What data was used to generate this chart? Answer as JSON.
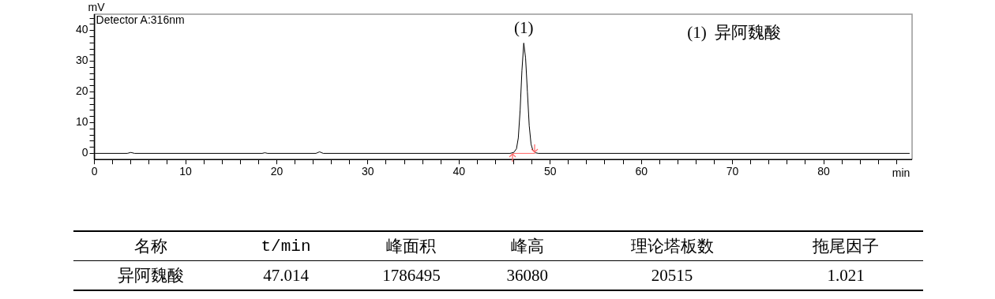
{
  "chart_data": [
    {
      "type": "line",
      "xlabel": "min",
      "ylabel": "mV",
      "annotations": [
        "Detector A:316nm",
        {
          "text": "(1)",
          "x": 47.1,
          "y": 35.9
        },
        "(1)  异阿魏酸"
      ],
      "xlim": [
        0,
        89.7
      ],
      "ylim": [
        -2,
        45.3
      ],
      "xticks": [
        0,
        {
          "value": 2,
          "label": null
        },
        {
          "value": 4,
          "label": null
        },
        {
          "value": 6,
          "label": null
        },
        {
          "value": 8,
          "label": null
        },
        10,
        {
          "value": 12,
          "label": null
        },
        {
          "value": 14,
          "label": null
        },
        {
          "value": 16,
          "label": null
        },
        {
          "value": 18,
          "label": null
        },
        20,
        {
          "value": 22,
          "label": null
        },
        {
          "value": 24,
          "label": null
        },
        {
          "value": 26,
          "label": null
        },
        {
          "value": 28,
          "label": null
        },
        30,
        {
          "value": 32,
          "label": null
        },
        {
          "value": 34,
          "label": null
        },
        {
          "value": 36,
          "label": null
        },
        {
          "value": 38,
          "label": null
        },
        40,
        {
          "value": 42,
          "label": null
        },
        {
          "value": 44,
          "label": null
        },
        {
          "value": 46,
          "label": null
        },
        {
          "value": 48,
          "label": null
        },
        50,
        {
          "value": 52,
          "label": null
        },
        {
          "value": 54,
          "label": null
        },
        {
          "value": 56,
          "label": null
        },
        {
          "value": 58,
          "label": null
        },
        60,
        {
          "value": 62,
          "label": null
        },
        {
          "value": 64,
          "label": null
        },
        {
          "value": 66,
          "label": null
        },
        {
          "value": 68,
          "label": null
        },
        70,
        {
          "value": 72,
          "label": null
        },
        {
          "value": 74,
          "label": null
        },
        {
          "value": 76,
          "label": null
        },
        {
          "value": 78,
          "label": null
        },
        80,
        {
          "value": 82,
          "label": null
        },
        {
          "value": 84,
          "label": null
        },
        {
          "value": 86,
          "label": null
        },
        {
          "value": 88,
          "label": null
        }
      ],
      "yticks": [
        0,
        {
          "value": 2,
          "label": null
        },
        {
          "value": 4,
          "label": null
        },
        {
          "value": 6,
          "label": null
        },
        {
          "value": 8,
          "label": null
        },
        10,
        {
          "value": 12,
          "label": null
        },
        {
          "value": 14,
          "label": null
        },
        {
          "value": 16,
          "label": null
        },
        {
          "value": 18,
          "label": null
        },
        20,
        {
          "value": 22,
          "label": null
        },
        {
          "value": 24,
          "label": null
        },
        {
          "value": 26,
          "label": null
        },
        {
          "value": 28,
          "label": null
        },
        30,
        {
          "value": 32,
          "label": null
        },
        {
          "value": 34,
          "label": null
        },
        {
          "value": 36,
          "label": null
        },
        {
          "value": 38,
          "label": null
        },
        40,
        {
          "value": 42,
          "label": null
        },
        {
          "value": 44,
          "label": null
        }
      ],
      "grid": false,
      "legend": false,
      "marker": "none",
      "line_style": "solid",
      "series": [
        {
          "color": "#000000",
          "x": [
            0,
            3.6,
            4.0,
            4.4,
            18.4,
            18.7,
            19.0,
            24.3,
            24.7,
            25.1,
            45.6,
            46.0,
            46.3,
            46.5,
            46.7,
            46.9,
            47.1,
            47.3,
            47.5,
            47.7,
            47.9,
            48.1,
            48.4,
            48.7,
            89.4
          ],
          "values": [
            0,
            0,
            0.3,
            0,
            0,
            0.2,
            0,
            0,
            0.5,
            0,
            0,
            0.3,
            1.5,
            5,
            14,
            27,
            35.9,
            31,
            20,
            9,
            3,
            1,
            0.2,
            0,
            0
          ]
        },
        {
          "color": "#ff6666",
          "x": [
            45.9,
            48.3
          ],
          "values": [
            0,
            0
          ]
        }
      ]
    },
    {
      "type": "other",
      "categories": [
        "名称",
        "t/min",
        "峰面积",
        "峰高",
        "理论塔板数",
        "拖尾因子"
      ],
      "annotations": [
        "异阿魏酸",
        "47.014",
        "1786495",
        "36080",
        "20515",
        "1.021"
      ]
    }
  ]
}
